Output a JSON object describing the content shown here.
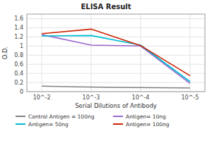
{
  "chart_data": {
    "type": "line",
    "title": "ELISA Result",
    "xlabel": "Serial Dilutions of Antibody",
    "ylabel": "O.D.",
    "x": [
      0.01,
      0.001,
      0.0001,
      1e-05
    ],
    "series": [
      {
        "name": "Control Antigen = 100ng",
        "color": "#808080",
        "values": [
          0.12,
          0.1,
          0.09,
          0.08
        ]
      },
      {
        "name": "Antigen= 10ng",
        "color": "#9966cc",
        "values": [
          1.25,
          1.02,
          1.0,
          0.18
        ]
      },
      {
        "name": "Antigen= 50ng",
        "color": "#00bcd4",
        "values": [
          1.22,
          1.23,
          1.02,
          0.22
        ]
      },
      {
        "name": "Antigen= 100ng",
        "color": "#cc2200",
        "values": [
          1.27,
          1.37,
          1.01,
          0.35
        ]
      }
    ],
    "log": "x",
    "xlim": [
      0.02,
      5e-06
    ],
    "xticks": [
      {
        "value": 0.01,
        "label": "10^-2"
      },
      {
        "value": 0.001,
        "label": "10^-3"
      },
      {
        "value": 0.0001,
        "label": "10^-4"
      },
      {
        "value": 1e-05,
        "label": "10^-5"
      }
    ],
    "ylim": [
      0,
      1.7
    ],
    "yticks": [
      0,
      0.2,
      0.4,
      0.6,
      0.8,
      1.0,
      1.2,
      1.4,
      1.6
    ],
    "grid": true,
    "legend": "bottom"
  }
}
